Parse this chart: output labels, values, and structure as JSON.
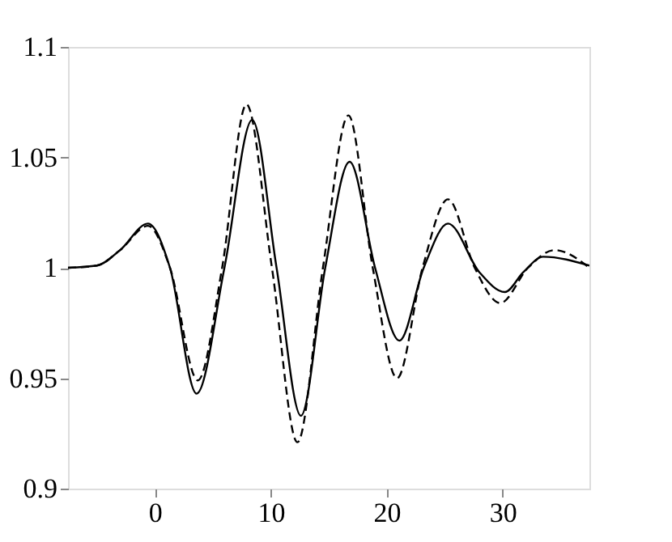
{
  "chart_data": {
    "type": "line",
    "xlim": [
      -7.5,
      37.5
    ],
    "xticks": [
      0,
      10,
      20,
      30
    ],
    "ylim": [
      0.9,
      1.1
    ],
    "yticks": [
      0.9,
      0.95,
      1,
      1.05,
      1.1
    ],
    "grid": false,
    "series": [
      {
        "color": "#000000",
        "line_style": "solid",
        "x": [
          -7.5,
          -5,
          -3,
          -0.6,
          1.3,
          3.6,
          6.0,
          8.4,
          10.5,
          12.6,
          14.7,
          16.8,
          19.0,
          21.1,
          23.2,
          25.3,
          28,
          30.2,
          31.8,
          33.5,
          37.5
        ],
        "values": [
          1.0,
          1.001,
          1.008,
          1.02,
          1.0,
          0.943,
          1.0,
          1.067,
          1.0,
          0.933,
          1.0,
          1.048,
          1.0,
          0.967,
          1.0,
          1.02,
          0.998,
          0.989,
          0.998,
          1.005,
          1.001
        ]
      },
      {
        "color": "#000000",
        "line_style": "dashed",
        "x": [
          -7.5,
          -5,
          -3,
          -0.6,
          1.3,
          3.7,
          5.8,
          7.9,
          10.1,
          12.3,
          14.5,
          16.7,
          18.8,
          20.9,
          23.1,
          25.3,
          27.6,
          29.8,
          32.2,
          34.5,
          37.5
        ],
        "values": [
          1.0,
          1.001,
          1.008,
          1.019,
          1.0,
          0.949,
          1.0,
          1.074,
          1.0,
          0.921,
          1.0,
          1.069,
          1.0,
          0.95,
          1.0,
          1.031,
          1.0,
          0.984,
          1.0,
          1.008,
          1.0
        ]
      }
    ]
  }
}
